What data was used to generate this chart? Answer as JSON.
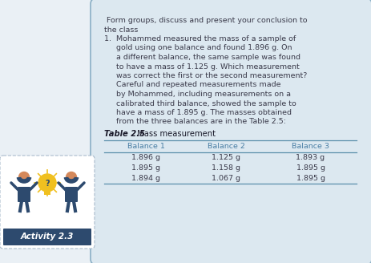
{
  "bg_color": "#eaf0f5",
  "box_bg_color": "#dce8f0",
  "box_edge_color": "#8aafc5",
  "activity_bg": "#2d4a6e",
  "activity_text_color": "#ffffff",
  "activity_label": "Activity 2.3",
  "table_title_bold": "Table 2.5",
  "table_title_normal": " Mass measurement",
  "intro_line1": " Form groups, discuss and present your conclusion to",
  "intro_line2": "the class",
  "body_lines": [
    "1.  Mohammed measured the mass of a sample of",
    "     gold using one balance and found 1.896 g. On",
    "     a different balance, the same sample was found",
    "     to have a mass of 1.125 g. Which measurement",
    "     was correct the first or the second measurement?",
    "     Careful and repeated measurements made",
    "     by Mohammed, including measurements on a",
    "     calibrated third balance, showed the sample to",
    "     have a mass of 1.895 g. The masses obtained",
    "     from the three balances are in the Table 2.5:"
  ],
  "table_headers": [
    "Balance 1",
    "Balance 2",
    "Balance 3"
  ],
  "table_data": [
    [
      "1.896 g",
      "1.125 g",
      "1.893 g"
    ],
    [
      "1.895 g",
      "1.158 g",
      "1.895 g"
    ],
    [
      "1.894 g",
      "1.067 g",
      "1.895 g"
    ]
  ],
  "table_header_color": "#4a7fa5",
  "table_line_color": "#5a8faa",
  "text_color": "#3a3a4a",
  "bold_table_color": "#1a1a2a",
  "person_color": "#2d4a6e",
  "skin_color": "#d4885a",
  "bulb_color": "#f0c020",
  "act_box_border": "#aabbcc",
  "act_box_fill": "#ffffff"
}
